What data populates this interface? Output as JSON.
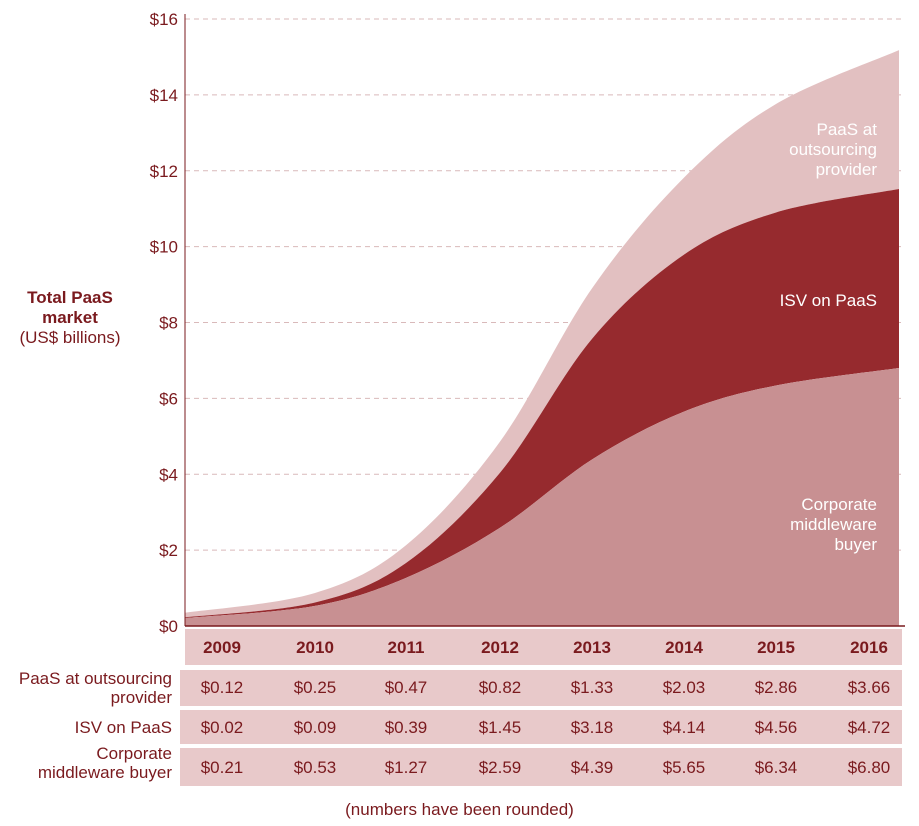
{
  "chart_data": {
    "type": "area",
    "stacked": true,
    "categories": [
      "2009",
      "2010",
      "2011",
      "2012",
      "2013",
      "2014",
      "2015",
      "2016"
    ],
    "series": [
      {
        "name": "Corporate middleware buyer",
        "label_lines": [
          "Corporate",
          "middleware",
          "buyer"
        ],
        "color": "#c89092",
        "values": [
          0.21,
          0.53,
          1.27,
          2.59,
          4.39,
          5.65,
          6.34,
          6.8
        ]
      },
      {
        "name": "ISV on PaaS",
        "label_lines": [
          "ISV on PaaS"
        ],
        "color": "#962a2e",
        "values": [
          0.02,
          0.09,
          0.39,
          1.45,
          3.18,
          4.14,
          4.56,
          4.72
        ]
      },
      {
        "name": "PaaS at outsourcing provider",
        "label_lines": [
          "PaaS at",
          "outsourcing",
          "provider"
        ],
        "color": "#e2c0c1",
        "values": [
          0.12,
          0.25,
          0.47,
          0.82,
          1.33,
          2.03,
          2.86,
          3.66
        ]
      }
    ],
    "ylim": [
      0,
      16
    ],
    "yticks": [
      "$0",
      "$2",
      "$4",
      "$6",
      "$8",
      "$10",
      "$12",
      "$14",
      "$16"
    ],
    "ylabel": {
      "bold": "Total PaaS market",
      "sub": "(US$ billions)"
    },
    "grid": "horizontal dashed"
  },
  "table": {
    "rows": [
      {
        "label_lines": [
          "PaaS at outsourcing",
          "provider"
        ],
        "values": [
          "$0.12",
          "$0.25",
          "$0.47",
          "$0.82",
          "$1.33",
          "$2.03",
          "$2.86",
          "$3.66"
        ]
      },
      {
        "label_lines": [
          "ISV on PaaS"
        ],
        "values": [
          "$0.02",
          "$0.09",
          "$0.39",
          "$1.45",
          "$3.18",
          "$4.14",
          "$4.56",
          "$4.72"
        ]
      },
      {
        "label_lines": [
          "Corporate",
          "middleware buyer"
        ],
        "values": [
          "$0.21",
          "$0.53",
          "$1.27",
          "$2.59",
          "$4.39",
          "$5.65",
          "$6.34",
          "$6.80"
        ]
      }
    ]
  },
  "footnote": "(numbers have been rounded)"
}
